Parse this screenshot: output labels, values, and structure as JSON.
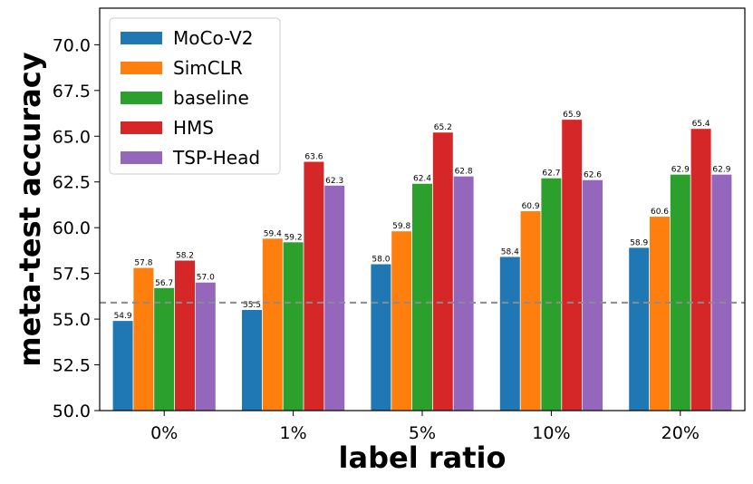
{
  "chart_data": {
    "type": "bar",
    "title": "",
    "xlabel": "label ratio",
    "ylabel": "meta-test accuracy",
    "categories": [
      "0%",
      "1%",
      "5%",
      "10%",
      "20%"
    ],
    "ylim": [
      50.0,
      72.0
    ],
    "yticks": [
      "50.0",
      "52.5",
      "55.0",
      "57.5",
      "60.0",
      "62.5",
      "65.0",
      "67.5",
      "70.0"
    ],
    "ytick_values": [
      50.0,
      52.5,
      55.0,
      57.5,
      60.0,
      62.5,
      65.0,
      67.5,
      70.0
    ],
    "reference_line": {
      "value": 55.9,
      "style": "dashed",
      "color": "#8c8c8c"
    },
    "legend_position": "top-left",
    "series": [
      {
        "name": "MoCo-V2",
        "color": "#1f77b4",
        "values": [
          54.9,
          55.5,
          58.0,
          58.4,
          58.9
        ],
        "labels": [
          "54.9",
          "55.5",
          "58.0",
          "58.4",
          "58.9"
        ]
      },
      {
        "name": "SimCLR",
        "color": "#ff7f0e",
        "values": [
          57.8,
          59.4,
          59.8,
          60.9,
          60.6
        ],
        "labels": [
          "57.8",
          "59.4",
          "59.8",
          "60.9",
          "60.6"
        ]
      },
      {
        "name": "baseline",
        "color": "#2ca02c",
        "values": [
          56.7,
          59.2,
          62.4,
          62.7,
          62.9
        ],
        "labels": [
          "56.7",
          "59.2",
          "62.4",
          "62.7",
          "62.9"
        ]
      },
      {
        "name": "HMS",
        "color": "#d62728",
        "values": [
          58.2,
          63.6,
          65.2,
          65.9,
          65.4
        ],
        "labels": [
          "58.2",
          "63.6",
          "65.2",
          "65.9",
          "65.4"
        ]
      },
      {
        "name": "TSP-Head",
        "color": "#9467bd",
        "values": [
          57.0,
          62.3,
          62.8,
          62.6,
          62.9
        ],
        "labels": [
          "57.0",
          "62.3",
          "62.8",
          "62.6",
          "62.9"
        ]
      }
    ]
  }
}
